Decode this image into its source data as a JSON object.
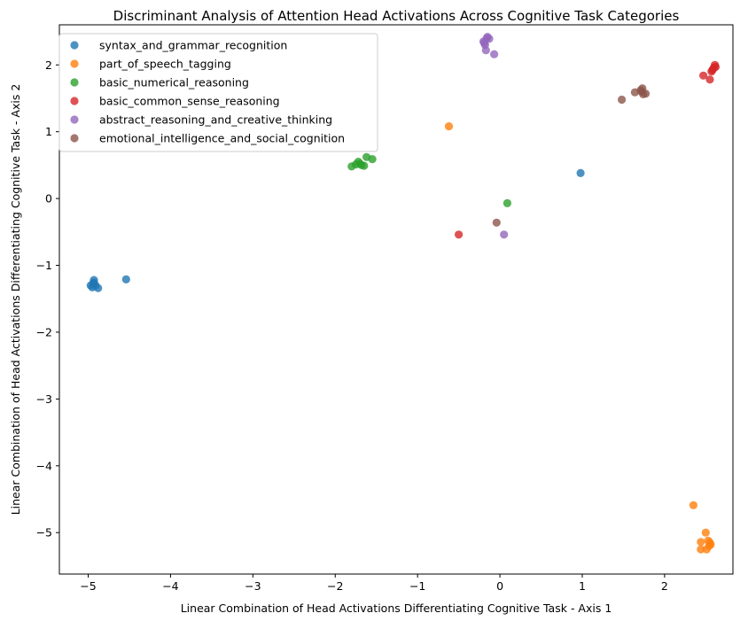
{
  "chart_data": {
    "type": "scatter",
    "title": "Discriminant Analysis of Attention Head Activations Across Cognitive Task Categories",
    "xlabel": "Linear Combination of Head Activations Differentiating Cognitive Task - Axis 1",
    "ylabel": "Linear Combination of Head Activations Differentiating Cognitive Task - Axis 2",
    "xlim": [
      -5.35,
      2.83
    ],
    "ylim": [
      -5.62,
      2.6
    ],
    "xticks": [
      -5,
      -4,
      -3,
      -2,
      -1,
      0,
      1,
      2
    ],
    "yticks": [
      -5,
      -4,
      -3,
      -2,
      -1,
      0,
      1,
      2
    ],
    "xtick_labels": [
      "−5",
      "−4",
      "−3",
      "−2",
      "−1",
      "0",
      "1",
      "2"
    ],
    "ytick_labels": [
      "−5",
      "−4",
      "−3",
      "−2",
      "−1",
      "0",
      "1",
      "2"
    ],
    "legend_position": "top-left",
    "grid": false,
    "series": [
      {
        "name": "syntax_and_grammar_recognition",
        "color": "#1f77b4",
        "points": [
          [
            -4.97,
            -1.3
          ],
          [
            -4.94,
            -1.27
          ],
          [
            -4.93,
            -1.22
          ],
          [
            -4.95,
            -1.33
          ],
          [
            -4.91,
            -1.3
          ],
          [
            -4.88,
            -1.34
          ],
          [
            -4.93,
            -1.26
          ],
          [
            -4.54,
            -1.21
          ],
          [
            0.98,
            0.38
          ]
        ]
      },
      {
        "name": "part_of_speech_tagging",
        "color": "#ff7f0e",
        "points": [
          [
            2.35,
            -4.59
          ],
          [
            2.5,
            -5.0
          ],
          [
            2.44,
            -5.14
          ],
          [
            2.53,
            -5.12
          ],
          [
            2.55,
            -5.15
          ],
          [
            2.44,
            -5.25
          ],
          [
            2.51,
            -5.25
          ],
          [
            2.54,
            -5.2
          ],
          [
            2.56,
            -5.18
          ],
          [
            -0.62,
            1.08
          ]
        ]
      },
      {
        "name": "basic_numerical_reasoning",
        "color": "#2ca02c",
        "points": [
          [
            -1.8,
            0.48
          ],
          [
            -1.75,
            0.51
          ],
          [
            -1.72,
            0.55
          ],
          [
            -1.68,
            0.5
          ],
          [
            -1.65,
            0.49
          ],
          [
            -1.62,
            0.62
          ],
          [
            -1.55,
            0.59
          ],
          [
            -1.7,
            0.52
          ],
          [
            0.09,
            -0.07
          ]
        ]
      },
      {
        "name": "basic_common_sense_reasoning",
        "color": "#d62728",
        "points": [
          [
            2.47,
            1.84
          ],
          [
            2.55,
            1.78
          ],
          [
            2.57,
            1.9
          ],
          [
            2.59,
            1.94
          ],
          [
            2.61,
            2.0
          ],
          [
            2.62,
            1.97
          ],
          [
            2.6,
            1.96
          ],
          [
            2.58,
            1.92
          ],
          [
            -0.5,
            -0.54
          ]
        ]
      },
      {
        "name": "abstract_reasoning_and_creative_thinking",
        "color": "#9467bd",
        "points": [
          [
            -0.2,
            2.35
          ],
          [
            -0.16,
            2.4
          ],
          [
            -0.13,
            2.39
          ],
          [
            -0.18,
            2.3
          ],
          [
            -0.17,
            2.22
          ],
          [
            -0.07,
            2.16
          ],
          [
            -0.15,
            2.42
          ],
          [
            -0.19,
            2.33
          ],
          [
            0.05,
            -0.54
          ]
        ]
      },
      {
        "name": "emotional_intelligence_and_social_cognition",
        "color": "#8c564b",
        "points": [
          [
            1.48,
            1.48
          ],
          [
            1.64,
            1.59
          ],
          [
            1.72,
            1.6
          ],
          [
            1.73,
            1.65
          ],
          [
            1.74,
            1.56
          ],
          [
            1.77,
            1.57
          ],
          [
            1.71,
            1.62
          ],
          [
            -0.04,
            -0.36
          ]
        ]
      }
    ]
  }
}
